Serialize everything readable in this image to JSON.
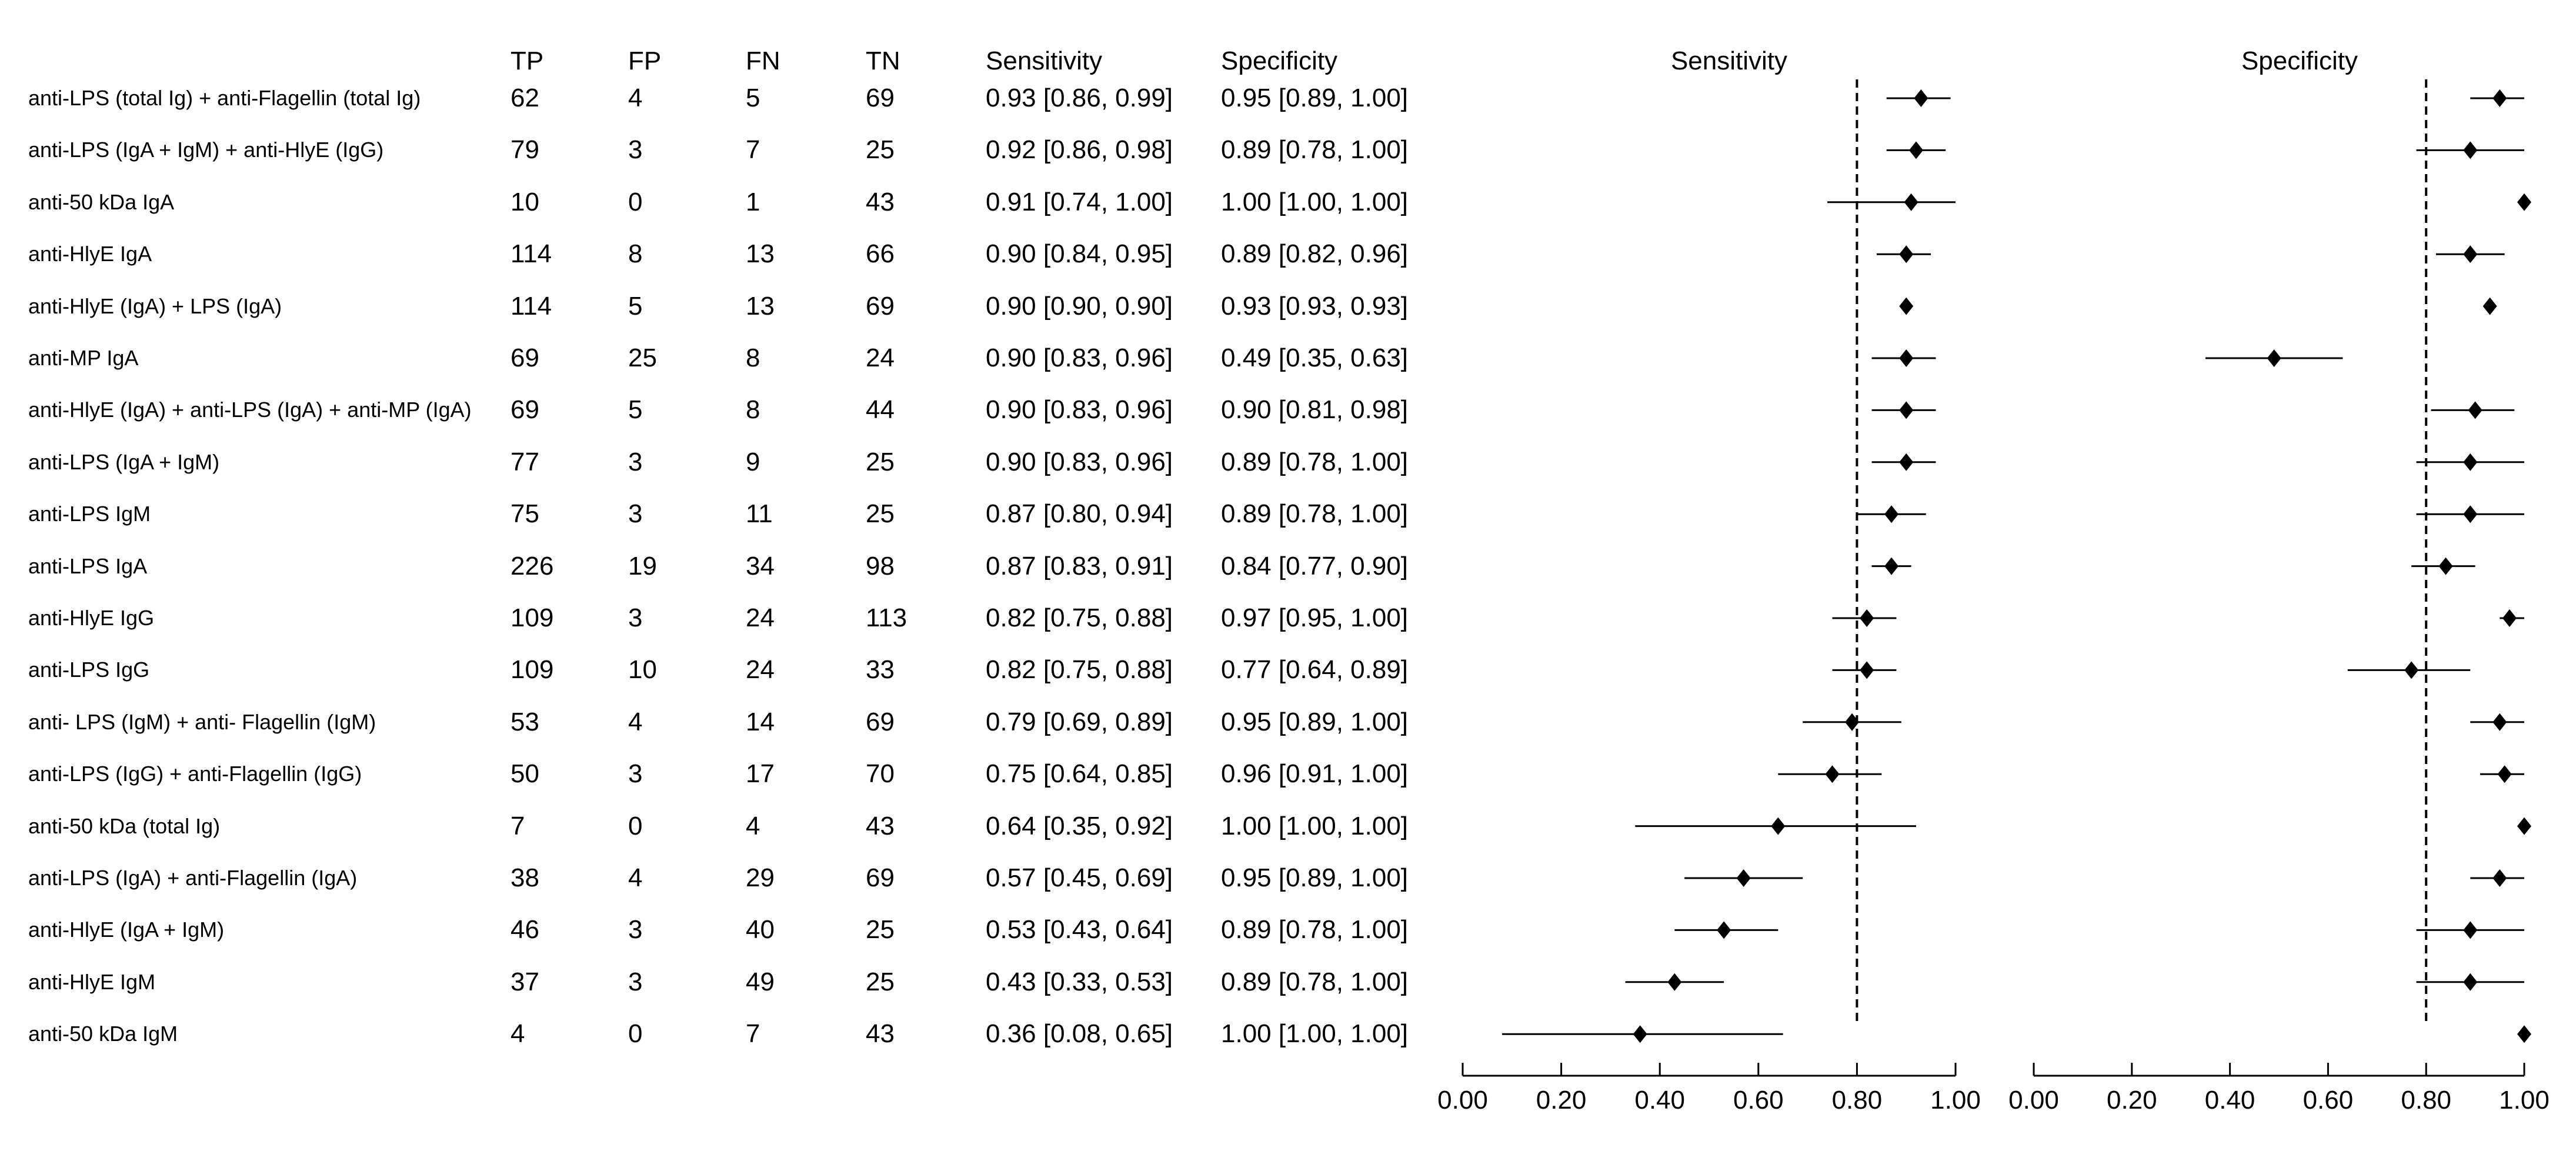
{
  "table": {
    "columns": [
      "TP",
      "FP",
      "FN",
      "TN",
      "Sensitivity",
      "Specificity"
    ]
  },
  "chart_data": {
    "type": "forest",
    "panels": [
      {
        "title": "Sensitivity",
        "metric": "sensitivity",
        "reference_line": 0.8,
        "xlim": [
          0,
          1
        ],
        "ticks": [
          "0.00",
          "0.20",
          "0.40",
          "0.60",
          "0.80",
          "1.00"
        ]
      },
      {
        "title": "Specificity",
        "metric": "specificity",
        "reference_line": 0.8,
        "xlim": [
          0,
          1
        ],
        "ticks": [
          "0.00",
          "0.20",
          "0.40",
          "0.60",
          "0.80",
          "1.00"
        ]
      }
    ],
    "rows": [
      {
        "label": "anti-LPS (total Ig) + anti-Flagellin (total Ig)",
        "tp": "62",
        "fp": "4",
        "fn": "5",
        "tn": "69",
        "sens": 0.93,
        "sens_lo": 0.86,
        "sens_hi": 0.99,
        "spec": 0.95,
        "spec_lo": 0.89,
        "spec_hi": 1.0,
        "sens_text": "0.93 [0.86, 0.99]",
        "spec_text": "0.95 [0.89, 1.00]"
      },
      {
        "label": "anti-LPS (IgA + IgM) + anti-HlyE (IgG)",
        "tp": "79",
        "fp": "3",
        "fn": "7",
        "tn": "25",
        "sens": 0.92,
        "sens_lo": 0.86,
        "sens_hi": 0.98,
        "spec": 0.89,
        "spec_lo": 0.78,
        "spec_hi": 1.0,
        "sens_text": "0.92 [0.86, 0.98]",
        "spec_text": "0.89 [0.78, 1.00]"
      },
      {
        "label": "anti-50 kDa IgA",
        "tp": "10",
        "fp": "0",
        "fn": "1",
        "tn": "43",
        "sens": 0.91,
        "sens_lo": 0.74,
        "sens_hi": 1.0,
        "spec": 1.0,
        "spec_lo": 1.0,
        "spec_hi": 1.0,
        "sens_text": "0.91 [0.74, 1.00]",
        "spec_text": "1.00 [1.00, 1.00]"
      },
      {
        "label": "anti-HlyE IgA",
        "tp": "114",
        "fp": "8",
        "fn": "13",
        "tn": "66",
        "sens": 0.9,
        "sens_lo": 0.84,
        "sens_hi": 0.95,
        "spec": 0.89,
        "spec_lo": 0.82,
        "spec_hi": 0.96,
        "sens_text": "0.90 [0.84, 0.95]",
        "spec_text": "0.89 [0.82, 0.96]"
      },
      {
        "label": "anti-HlyE (IgA) + LPS (IgA)",
        "tp": "114",
        "fp": "5",
        "fn": "13",
        "tn": "69",
        "sens": 0.9,
        "sens_lo": 0.9,
        "sens_hi": 0.9,
        "spec": 0.93,
        "spec_lo": 0.93,
        "spec_hi": 0.93,
        "sens_text": "0.90 [0.90, 0.90]",
        "spec_text": "0.93 [0.93, 0.93]"
      },
      {
        "label": "anti-MP IgA",
        "tp": "69",
        "fp": "25",
        "fn": "8",
        "tn": "24",
        "sens": 0.9,
        "sens_lo": 0.83,
        "sens_hi": 0.96,
        "spec": 0.49,
        "spec_lo": 0.35,
        "spec_hi": 0.63,
        "sens_text": "0.90 [0.83, 0.96]",
        "spec_text": "0.49 [0.35, 0.63]"
      },
      {
        "label": "anti-HlyE (IgA) + anti-LPS (IgA) + anti-MP (IgA)",
        "tp": "69",
        "fp": "5",
        "fn": "8",
        "tn": "44",
        "sens": 0.9,
        "sens_lo": 0.83,
        "sens_hi": 0.96,
        "spec": 0.9,
        "spec_lo": 0.81,
        "spec_hi": 0.98,
        "sens_text": "0.90 [0.83, 0.96]",
        "spec_text": "0.90 [0.81, 0.98]"
      },
      {
        "label": "anti-LPS (IgA + IgM)",
        "tp": "77",
        "fp": "3",
        "fn": "9",
        "tn": "25",
        "sens": 0.9,
        "sens_lo": 0.83,
        "sens_hi": 0.96,
        "spec": 0.89,
        "spec_lo": 0.78,
        "spec_hi": 1.0,
        "sens_text": "0.90 [0.83, 0.96]",
        "spec_text": "0.89 [0.78, 1.00]"
      },
      {
        "label": "anti-LPS IgM",
        "tp": "75",
        "fp": "3",
        "fn": "11",
        "tn": "25",
        "sens": 0.87,
        "sens_lo": 0.8,
        "sens_hi": 0.94,
        "spec": 0.89,
        "spec_lo": 0.78,
        "spec_hi": 1.0,
        "sens_text": "0.87 [0.80, 0.94]",
        "spec_text": "0.89 [0.78, 1.00]"
      },
      {
        "label": "anti-LPS IgA",
        "tp": "226",
        "fp": "19",
        "fn": "34",
        "tn": "98",
        "sens": 0.87,
        "sens_lo": 0.83,
        "sens_hi": 0.91,
        "spec": 0.84,
        "spec_lo": 0.77,
        "spec_hi": 0.9,
        "sens_text": "0.87 [0.83, 0.91]",
        "spec_text": "0.84 [0.77, 0.90]"
      },
      {
        "label": "anti-HlyE IgG",
        "tp": "109",
        "fp": "3",
        "fn": "24",
        "tn": "113",
        "sens": 0.82,
        "sens_lo": 0.75,
        "sens_hi": 0.88,
        "spec": 0.97,
        "spec_lo": 0.95,
        "spec_hi": 1.0,
        "sens_text": "0.82 [0.75, 0.88]",
        "spec_text": "0.97 [0.95, 1.00]"
      },
      {
        "label": "anti-LPS IgG",
        "tp": "109",
        "fp": "10",
        "fn": "24",
        "tn": "33",
        "sens": 0.82,
        "sens_lo": 0.75,
        "sens_hi": 0.88,
        "spec": 0.77,
        "spec_lo": 0.64,
        "spec_hi": 0.89,
        "sens_text": "0.82 [0.75, 0.88]",
        "spec_text": "0.77 [0.64, 0.89]"
      },
      {
        "label": "anti- LPS (IgM) + anti- Flagellin (IgM)",
        "tp": "53",
        "fp": "4",
        "fn": "14",
        "tn": "69",
        "sens": 0.79,
        "sens_lo": 0.69,
        "sens_hi": 0.89,
        "spec": 0.95,
        "spec_lo": 0.89,
        "spec_hi": 1.0,
        "sens_text": "0.79 [0.69, 0.89]",
        "spec_text": "0.95 [0.89, 1.00]"
      },
      {
        "label": "anti-LPS (IgG) + anti-Flagellin (IgG)",
        "tp": "50",
        "fp": "3",
        "fn": "17",
        "tn": "70",
        "sens": 0.75,
        "sens_lo": 0.64,
        "sens_hi": 0.85,
        "spec": 0.96,
        "spec_lo": 0.91,
        "spec_hi": 1.0,
        "sens_text": "0.75 [0.64, 0.85]",
        "spec_text": "0.96 [0.91, 1.00]"
      },
      {
        "label": "anti-50 kDa (total Ig)",
        "tp": "7",
        "fp": "0",
        "fn": "4",
        "tn": "43",
        "sens": 0.64,
        "sens_lo": 0.35,
        "sens_hi": 0.92,
        "spec": 1.0,
        "spec_lo": 1.0,
        "spec_hi": 1.0,
        "sens_text": "0.64 [0.35, 0.92]",
        "spec_text": "1.00 [1.00, 1.00]"
      },
      {
        "label": "anti-LPS (IgA) + anti-Flagellin (IgA)",
        "tp": "38",
        "fp": "4",
        "fn": "29",
        "tn": "69",
        "sens": 0.57,
        "sens_lo": 0.45,
        "sens_hi": 0.69,
        "spec": 0.95,
        "spec_lo": 0.89,
        "spec_hi": 1.0,
        "sens_text": "0.57 [0.45, 0.69]",
        "spec_text": "0.95 [0.89, 1.00]"
      },
      {
        "label": "anti-HlyE (IgA + IgM)",
        "tp": "46",
        "fp": "3",
        "fn": "40",
        "tn": "25",
        "sens": 0.53,
        "sens_lo": 0.43,
        "sens_hi": 0.64,
        "spec": 0.89,
        "spec_lo": 0.78,
        "spec_hi": 1.0,
        "sens_text": "0.53 [0.43, 0.64]",
        "spec_text": "0.89 [0.78, 1.00]"
      },
      {
        "label": "anti-HlyE IgM",
        "tp": "37",
        "fp": "3",
        "fn": "49",
        "tn": "25",
        "sens": 0.43,
        "sens_lo": 0.33,
        "sens_hi": 0.53,
        "spec": 0.89,
        "spec_lo": 0.78,
        "spec_hi": 1.0,
        "sens_text": "0.43 [0.33, 0.53]",
        "spec_text": "0.89 [0.78, 1.00]"
      },
      {
        "label": "anti-50 kDa IgM",
        "tp": "4",
        "fp": "0",
        "fn": "7",
        "tn": "43",
        "sens": 0.36,
        "sens_lo": 0.08,
        "sens_hi": 0.65,
        "spec": 1.0,
        "spec_lo": 1.0,
        "spec_hi": 1.0,
        "sens_text": "0.36 [0.08, 0.65]",
        "spec_text": "1.00 [1.00, 1.00]"
      }
    ]
  }
}
